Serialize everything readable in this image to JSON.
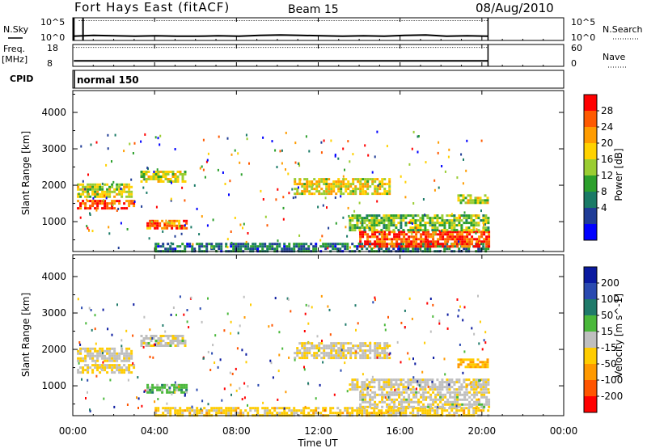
{
  "header": {
    "station": "Fort Hays East (fitACF)",
    "beam": "Beam 15",
    "date": "08/Aug/2010"
  },
  "cpid": {
    "label": "CPID",
    "program": "normal 150"
  },
  "noise_panel": {
    "left_label": "N.Sky",
    "right_label": "N.Search",
    "left_ticks": [
      "10^5",
      "10^0"
    ],
    "right_ticks": [
      "10^5",
      "10^0"
    ]
  },
  "freq_panel": {
    "left_label_top": "Freq.",
    "left_label_bottom": "[MHz]",
    "left_ticks": [
      "18",
      "8"
    ],
    "right_label": "Nave",
    "right_ticks": [
      "60",
      "0"
    ]
  },
  "x_axis": {
    "label": "Time UT",
    "ticks": [
      "00:00",
      "04:00",
      "08:00",
      "12:00",
      "16:00",
      "20:00",
      "00:00"
    ]
  },
  "power_colorbar": {
    "label": "Power [dB]",
    "ticks": [
      "28",
      "24",
      "20",
      "16",
      "12",
      "8",
      "4"
    ],
    "colors": [
      "#ff0000",
      "#ff5a00",
      "#ff9c00",
      "#ffd200",
      "#9acd32",
      "#2ca02c",
      "#1a7a66",
      "#1f3c96",
      "#0000ff"
    ]
  },
  "velocity_colorbar": {
    "label": "Velocity [m s^-1]",
    "ticks": [
      "200",
      "100",
      "50",
      "15",
      "-15",
      "-50",
      "-100",
      "-200"
    ],
    "colors": [
      "#0a1aa0",
      "#2a4ab0",
      "#1f7a6a",
      "#4ab83a",
      "#bfbfbf",
      "#ffcc00",
      "#ff9900",
      "#ff5500",
      "#ff0000"
    ]
  },
  "chart_data": {
    "type": "heatmap",
    "title": "Fort Hays East (fitACF)  Beam 15  08/Aug/2010",
    "xlabel": "Time UT",
    "ylabel": "Slant Range [km]",
    "xlim": [
      0,
      24
    ],
    "ylim": [
      180,
      4600
    ],
    "y_ticks": [
      1000,
      2000,
      3000,
      4000
    ],
    "panels": [
      {
        "name": "power",
        "colorbar_label": "Power [dB]",
        "zlim": [
          0,
          30
        ],
        "regions": [
          {
            "t0": 0.2,
            "t1": 2.9,
            "r0": 1700,
            "r1": 2050,
            "value": 16
          },
          {
            "t0": 0.2,
            "t1": 3.0,
            "r0": 1350,
            "r1": 1600,
            "value": 26
          },
          {
            "t0": 3.6,
            "t1": 5.6,
            "r0": 800,
            "r1": 1050,
            "value": 24
          },
          {
            "t0": 3.3,
            "t1": 5.5,
            "r0": 2100,
            "r1": 2400,
            "value": 16
          },
          {
            "t0": 4.0,
            "t1": 20.3,
            "r0": 200,
            "r1": 420,
            "value": 8
          },
          {
            "t0": 10.8,
            "t1": 15.5,
            "r0": 1800,
            "r1": 2200,
            "value": 18
          },
          {
            "t0": 14.0,
            "t1": 20.3,
            "r0": 350,
            "r1": 750,
            "value": 26
          },
          {
            "t0": 13.5,
            "t1": 20.3,
            "r0": 800,
            "r1": 1200,
            "value": 14
          },
          {
            "t0": 18.8,
            "t1": 20.3,
            "r0": 1550,
            "r1": 1750,
            "value": 16
          }
        ]
      },
      {
        "name": "velocity",
        "colorbar_label": "Velocity [m s^-1]",
        "zlim": [
          -200,
          200
        ],
        "regions": [
          {
            "t0": 0.2,
            "t1": 2.9,
            "r0": 1700,
            "r1": 2050,
            "value": -10
          },
          {
            "t0": 0.2,
            "t1": 3.0,
            "r0": 1350,
            "r1": 1600,
            "value": -30
          },
          {
            "t0": 3.6,
            "t1": 5.6,
            "r0": 800,
            "r1": 1050,
            "value": 40
          },
          {
            "t0": 3.3,
            "t1": 5.5,
            "r0": 2100,
            "r1": 2400,
            "value": -5
          },
          {
            "t0": 4.0,
            "t1": 20.3,
            "r0": 200,
            "r1": 420,
            "value": -40
          },
          {
            "t0": 10.8,
            "t1": 15.5,
            "r0": 1800,
            "r1": 2200,
            "value": -10
          },
          {
            "t0": 14.0,
            "t1": 20.3,
            "r0": 450,
            "r1": 850,
            "value": -5
          },
          {
            "t0": 13.5,
            "t1": 20.3,
            "r0": 900,
            "r1": 1200,
            "value": -10
          },
          {
            "t0": 18.8,
            "t1": 20.3,
            "r0": 1550,
            "r1": 1750,
            "value": -60
          }
        ]
      }
    ],
    "noise": {
      "sky_log10": [
        1.0,
        1.2,
        1.1,
        1.0,
        1.1,
        1.0,
        1.0,
        1.1,
        1.0,
        1.2,
        1.3,
        1.2,
        1.1,
        1.0,
        1.1,
        1.0,
        1.2,
        1.3,
        1.0,
        1.1,
        1.0
      ],
      "search_log10": [
        4.7,
        4.7,
        4.7,
        4.7,
        4.7,
        4.7,
        4.7,
        4.7,
        4.7,
        4.7,
        4.7,
        4.7,
        4.7,
        4.7,
        4.7,
        4.7,
        4.7,
        4.7,
        4.7,
        4.7,
        4.7
      ]
    },
    "frequency_mhz": 10.5,
    "nave": 52,
    "data_end_ut": 20.3
  }
}
